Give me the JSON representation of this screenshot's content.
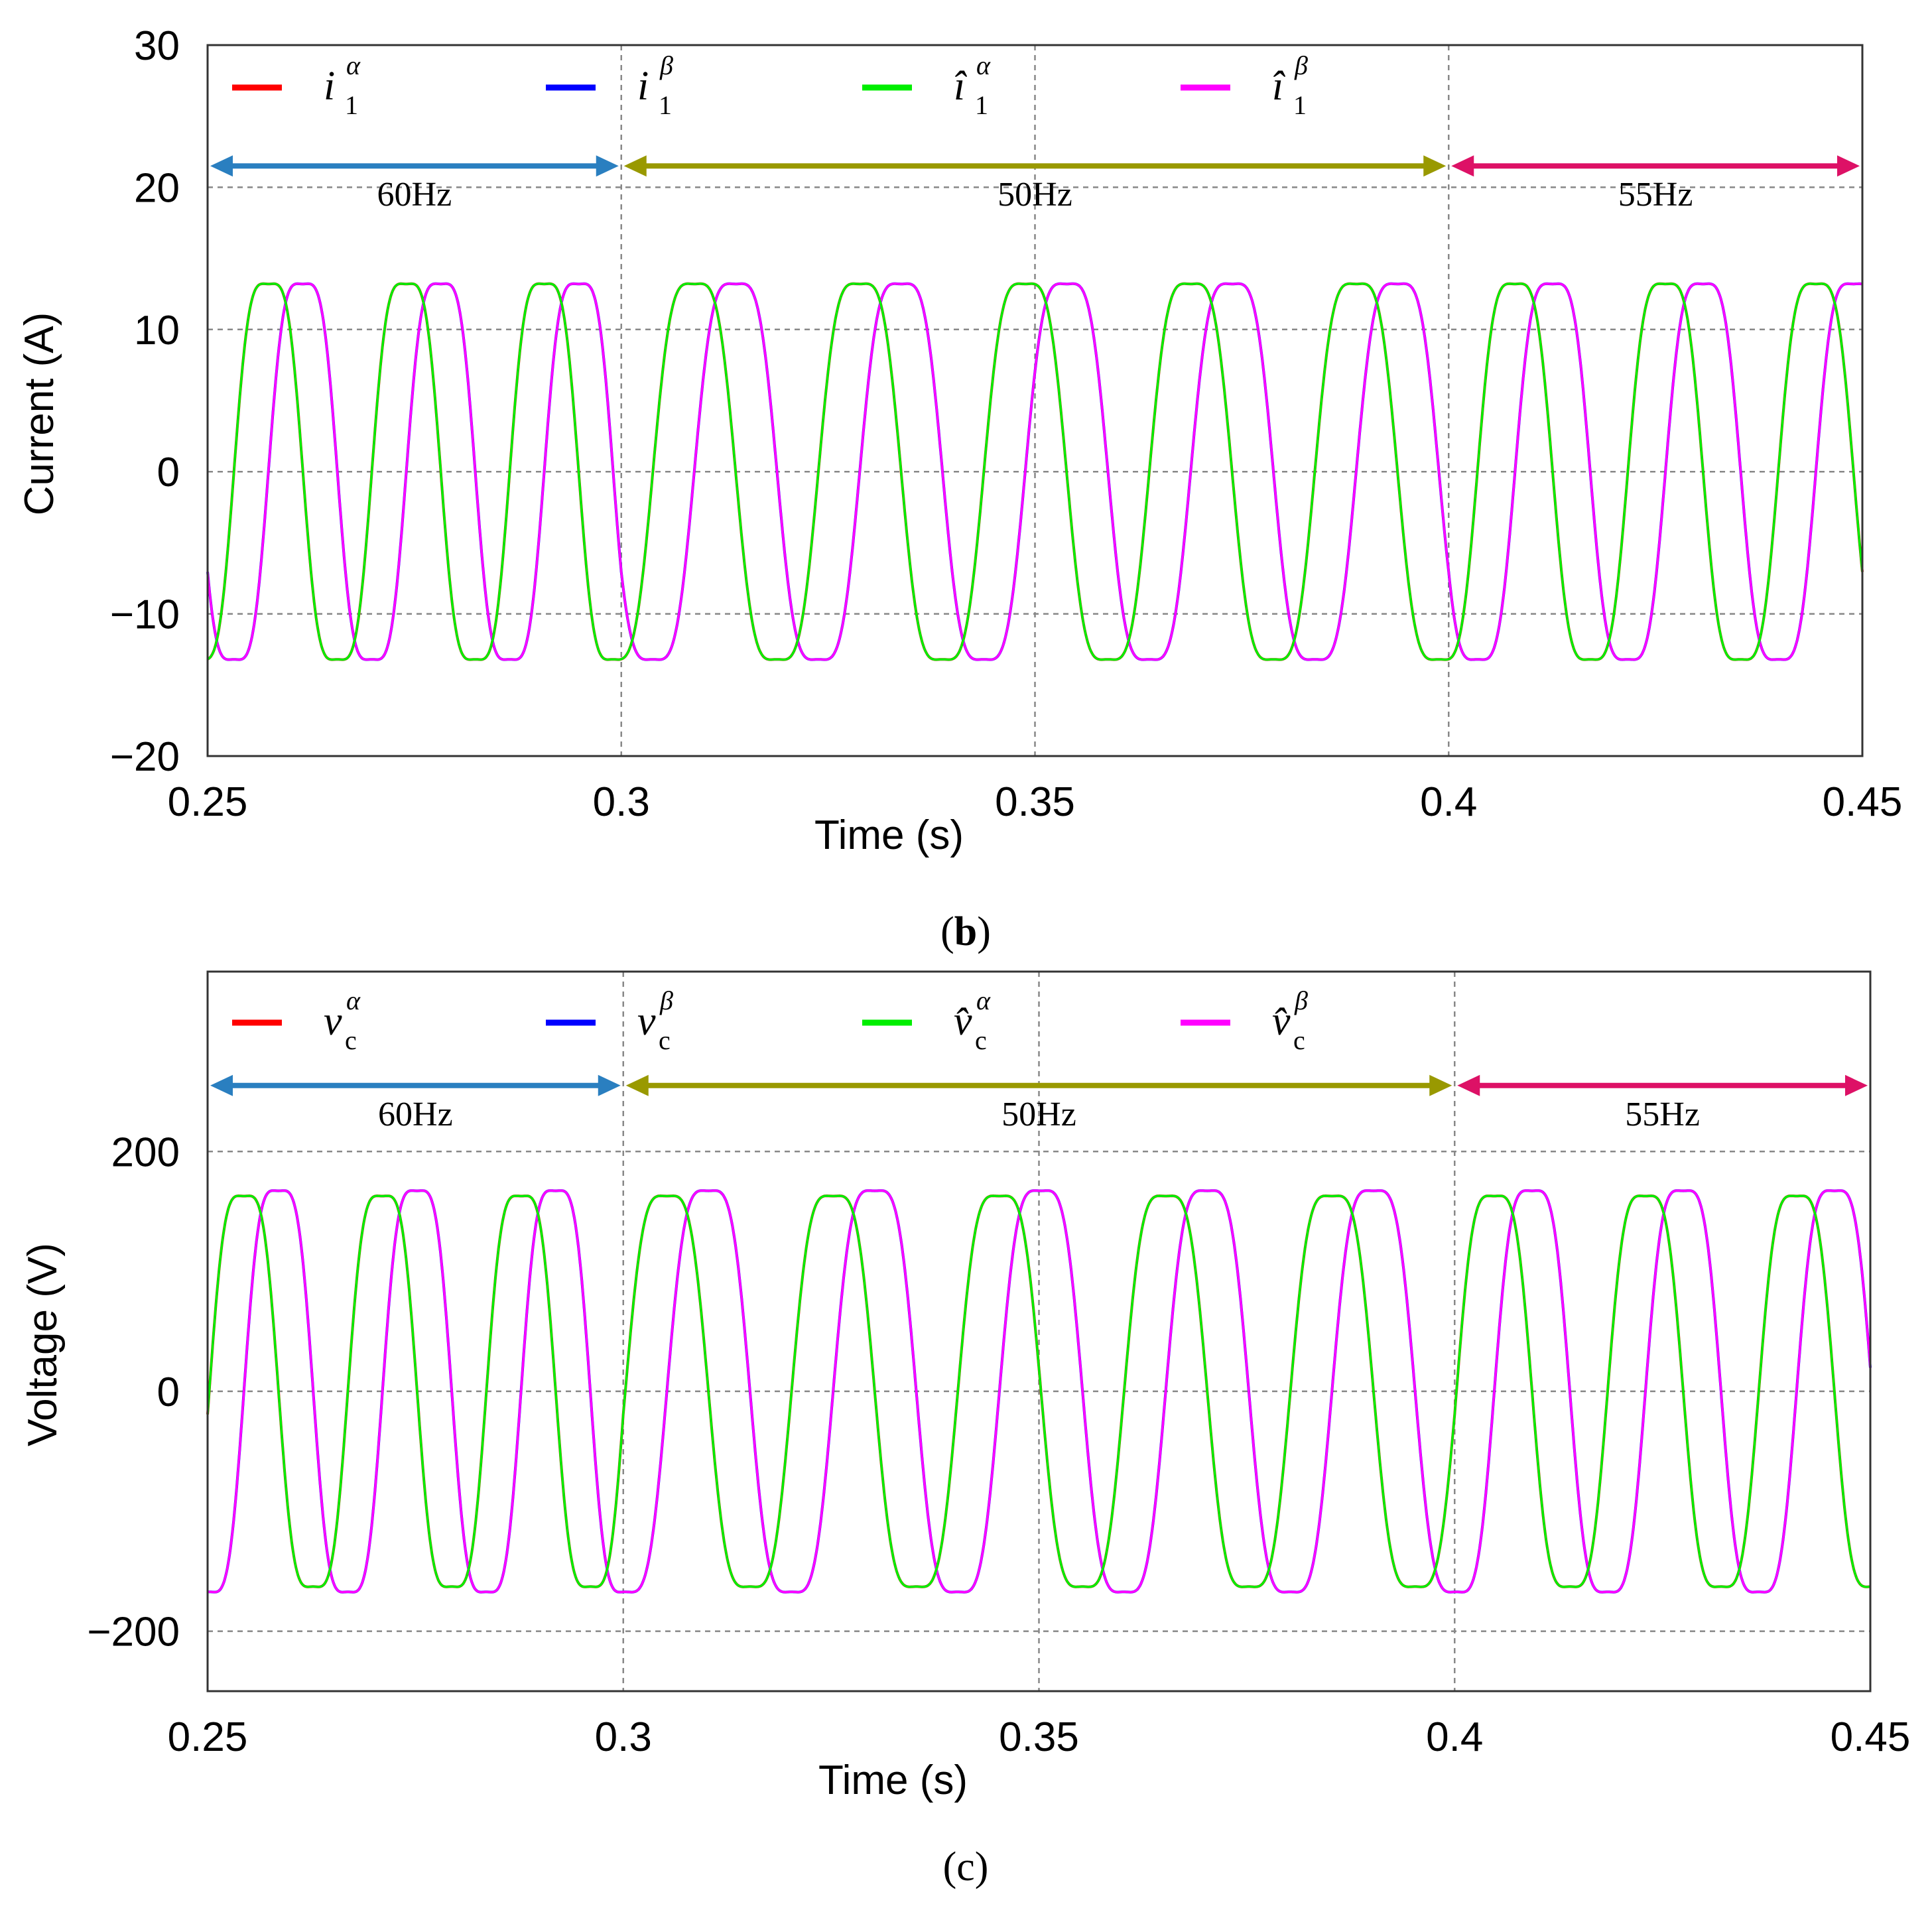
{
  "chart_data": [
    {
      "type": "line",
      "panel_label": "b",
      "xlabel": "Time (s)",
      "ylabel": "Current (A)",
      "xlim": [
        0.25,
        0.45
      ],
      "ylim": [
        -20,
        30
      ],
      "xticks": [
        "0.25",
        "0.3",
        "0.35",
        "0.4",
        "0.45"
      ],
      "yticks": [
        "30",
        "20",
        "10",
        "0",
        "−10",
        "−20"
      ],
      "ytick_values": [
        30,
        20,
        10,
        0,
        -10,
        -20
      ],
      "grid": true,
      "legend_position": "top",
      "series": [
        {
          "name": "i",
          "sub": "1",
          "sup": "α",
          "hat": false,
          "color": "#ff0000",
          "amplitude": 15,
          "phase_deg": 0
        },
        {
          "name": "i",
          "sub": "1",
          "sup": "β",
          "hat": false,
          "color": "#0000ff",
          "amplitude": 15,
          "phase_deg": -90
        },
        {
          "name": "î",
          "sub": "1",
          "sup": "α",
          "hat": true,
          "color": "#00ee00",
          "amplitude": 15,
          "phase_deg": 0
        },
        {
          "name": "î",
          "sub": "1",
          "sup": "β",
          "hat": true,
          "color": "#ff00ff",
          "amplitude": 15,
          "phase_deg": -90
        }
      ],
      "segments": [
        {
          "label": "60Hz",
          "freq_hz": 60,
          "x_start": 0.25,
          "x_end": 0.3,
          "color": "#2a7fc0",
          "y": 21.5
        },
        {
          "label": "50Hz",
          "freq_hz": 50,
          "x_start": 0.3,
          "x_end": 0.4,
          "color": "#999900",
          "y": 21.5
        },
        {
          "label": "55Hz",
          "freq_hz": 55,
          "x_start": 0.4,
          "x_end": 0.45,
          "color": "#dd1166",
          "y": 21.5
        }
      ]
    },
    {
      "type": "line",
      "panel_label": "c",
      "xlabel": "Time (s)",
      "ylabel": "Voltage (V)",
      "xlim": [
        0.25,
        0.45
      ],
      "ylim": [
        -250,
        350
      ],
      "xticks": [
        "0.25",
        "0.3",
        "0.35",
        "0.4",
        "0.45"
      ],
      "yticks": [
        "200",
        "0",
        "−200"
      ],
      "ytick_values": [
        200,
        0,
        -200
      ],
      "grid": true,
      "legend_position": "top",
      "series": [
        {
          "name": "v",
          "sub": "c",
          "sup": "α",
          "hat": false,
          "color": "#ff0000",
          "amplitude": 185,
          "phase_deg": 30
        },
        {
          "name": "v",
          "sub": "c",
          "sup": "β",
          "hat": false,
          "color": "#0000ff",
          "amplitude": 190,
          "phase_deg": -60
        },
        {
          "name": "v̂",
          "sub": "c",
          "sup": "α",
          "hat": true,
          "color": "#00ee00",
          "amplitude": 185,
          "phase_deg": 30
        },
        {
          "name": "v̂",
          "sub": "c",
          "sup": "β",
          "hat": true,
          "color": "#ff00ff",
          "amplitude": 190,
          "phase_deg": -60
        }
      ],
      "segments": [
        {
          "label": "60Hz",
          "freq_hz": 60,
          "x_start": 0.25,
          "x_end": 0.3,
          "color": "#2a7fc0",
          "y": 255
        },
        {
          "label": "50Hz",
          "freq_hz": 50,
          "x_start": 0.3,
          "x_end": 0.4,
          "color": "#999900",
          "y": 255
        },
        {
          "label": "55Hz",
          "freq_hz": 55,
          "x_start": 0.4,
          "x_end": 0.45,
          "color": "#dd1166",
          "y": 255
        }
      ]
    }
  ]
}
